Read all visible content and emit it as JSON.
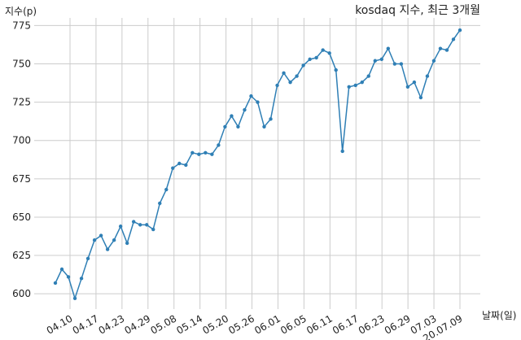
{
  "chart_data": {
    "type": "line",
    "title": "kosdaq 지수, 최근 3개월",
    "xlabel": "날짜(일)",
    "ylabel": "지수(p)",
    "x_tick_labels": [
      "04.10",
      "04.17",
      "04.23",
      "04.29",
      "05.08",
      "05.14",
      "05.20",
      "05.26",
      "06.01",
      "06.05",
      "06.11",
      "06.17",
      "06.23",
      "06.29",
      "07.03",
      "20.07.09"
    ],
    "y_ticks": [
      600,
      625,
      650,
      675,
      700,
      725,
      750,
      775
    ],
    "ylim": [
      590,
      780
    ],
    "grid": true,
    "line_color": "#2f7fb5",
    "series": [
      {
        "values": [
          607,
          616,
          611,
          597,
          610,
          623,
          635,
          638,
          629,
          635,
          644,
          633,
          647,
          645,
          645,
          642,
          659,
          668,
          682,
          685,
          684,
          692,
          691,
          692,
          691,
          697,
          709,
          716,
          709,
          720,
          729,
          725,
          709,
          714,
          736,
          744,
          738,
          742,
          749,
          753,
          754,
          759,
          757,
          746,
          693,
          735,
          736,
          738,
          742,
          752,
          753,
          760,
          750,
          750,
          735,
          738,
          728,
          742,
          752,
          760,
          759,
          766,
          772
        ]
      }
    ]
  }
}
